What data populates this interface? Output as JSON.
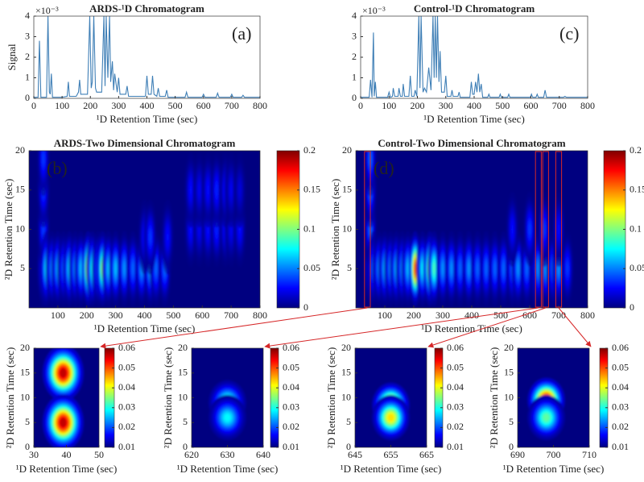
{
  "chart_data": [
    {
      "type": "line",
      "title": "ARDS-¹D Chromatogram",
      "annotation": "(a)",
      "x_label": "¹D Retention Time (sec)",
      "y_label": "Signal",
      "exponent_label": "×10⁻³",
      "xlim": [
        0,
        800
      ],
      "xticks": [
        0,
        100,
        200,
        300,
        400,
        500,
        600,
        700,
        800
      ],
      "ylim": [
        0,
        4
      ],
      "yticks": [
        0,
        1,
        2,
        3,
        4
      ],
      "color": "#3f7fb6",
      "x": [
        0,
        15,
        20,
        25,
        45,
        50,
        55,
        58,
        62,
        66,
        100,
        118,
        122,
        126,
        150,
        158,
        162,
        166,
        190,
        198,
        203,
        207,
        212,
        218,
        222,
        240,
        248,
        252,
        256,
        262,
        268,
        272,
        278,
        282,
        286,
        295,
        300,
        305,
        325,
        330,
        335,
        395,
        400,
        405,
        415,
        420,
        425,
        435,
        440,
        445,
        465,
        470,
        475,
        535,
        540,
        545,
        595,
        600,
        605,
        645,
        650,
        655,
        695,
        700,
        705,
        735,
        740,
        745,
        800
      ],
      "values": [
        0.05,
        0.05,
        2.8,
        0.05,
        0.05,
        4,
        0.3,
        0.2,
        1.2,
        0.05,
        0.05,
        0.1,
        0.8,
        0.1,
        0.1,
        0.3,
        0.9,
        0.2,
        0.2,
        4,
        0.5,
        0.8,
        4,
        0.5,
        0.3,
        0.3,
        4,
        0.6,
        4,
        1.0,
        4,
        0.8,
        1.8,
        0.4,
        1.2,
        0.3,
        1.0,
        0.2,
        0.2,
        0.6,
        0.1,
        0.1,
        1.1,
        0.2,
        0.2,
        1.1,
        0.2,
        0.1,
        0.5,
        0.1,
        0.1,
        0.4,
        0.05,
        0.05,
        0.3,
        0.05,
        0.05,
        0.2,
        0.05,
        0.05,
        0.25,
        0.05,
        0.05,
        0.2,
        0.05,
        0.05,
        0.15,
        0.05,
        0.05
      ]
    },
    {
      "type": "line",
      "title": "Control-¹D Chromatogram",
      "annotation": "(c)",
      "x_label": "¹D Retention Time (sec)",
      "exponent_label": "×10⁻³",
      "xlim": [
        0,
        800
      ],
      "xticks": [
        0,
        100,
        200,
        300,
        400,
        500,
        600,
        700,
        800
      ],
      "ylim": [
        0,
        4
      ],
      "yticks": [
        0,
        1,
        2,
        3,
        4
      ],
      "color": "#3f7fb6",
      "x": [
        0,
        30,
        35,
        40,
        45,
        48,
        52,
        56,
        95,
        100,
        105,
        112,
        115,
        120,
        132,
        135,
        140,
        147,
        150,
        155,
        170,
        175,
        180,
        188,
        192,
        198,
        205,
        209,
        213,
        220,
        225,
        232,
        240,
        248,
        255,
        259,
        263,
        267,
        271,
        276,
        280,
        285,
        295,
        300,
        305,
        318,
        322,
        326,
        343,
        347,
        351,
        385,
        390,
        395,
        400,
        405,
        410,
        415,
        420,
        425,
        430,
        448,
        452,
        456,
        488,
        492,
        496,
        518,
        522,
        526,
        598,
        602,
        606,
        618,
        622,
        626,
        645,
        650,
        655,
        715,
        720,
        725,
        800
      ],
      "values": [
        0.05,
        0.05,
        0.9,
        0.05,
        3.2,
        0.1,
        0.8,
        0.05,
        0.05,
        0.3,
        0.05,
        0.1,
        0.5,
        0.1,
        0.1,
        0.5,
        0.1,
        0.1,
        0.7,
        0.1,
        0.1,
        1.1,
        0.1,
        0.1,
        0.4,
        0.1,
        4,
        0.5,
        4,
        0.3,
        0.5,
        0.3,
        1.5,
        0.4,
        4,
        1,
        4,
        1,
        4,
        0.8,
        2.3,
        0.3,
        0.3,
        1.1,
        0.1,
        0.1,
        0.4,
        0.1,
        0.1,
        0.3,
        0.05,
        0.05,
        0.8,
        0.2,
        0.2,
        0.8,
        0.3,
        1.2,
        0.3,
        0.7,
        0.05,
        0.05,
        0.2,
        0.05,
        0.05,
        0.2,
        0.05,
        0.05,
        0.2,
        0.05,
        0.05,
        0.2,
        0.05,
        0.05,
        0.2,
        0.05,
        0.05,
        0.4,
        0.05,
        0.05,
        0.1,
        0.05,
        0.05
      ]
    },
    {
      "type": "heatmap",
      "title": "ARDS-Two Dimensional Chromatogram",
      "annotation": "(b)",
      "x_label": "¹D Retention Time (sec)",
      "y_label": "²D Retention Time (sec)",
      "colormap": "jet",
      "xlim": [
        0,
        800
      ],
      "xticks": [
        100,
        200,
        300,
        400,
        500,
        600,
        700,
        800
      ],
      "ylim": [
        0,
        20
      ],
      "yticks": [
        5,
        10,
        15,
        20
      ],
      "zlim": [
        0,
        0.2
      ],
      "zticks": [
        0,
        0.05,
        0.1,
        0.15,
        0.2
      ],
      "spots": {
        "x": [
          50,
          50,
          50,
          50,
          60,
          80,
          100,
          120,
          140,
          160,
          180,
          205,
          220,
          240,
          255,
          275,
          300,
          330,
          360,
          390,
          420,
          440,
          470,
          400,
          420,
          480,
          560,
          590,
          620,
          650,
          680,
          700,
          730,
          560,
          590,
          620,
          650,
          680,
          700,
          730
        ],
        "y": [
          5,
          10,
          15,
          19,
          5,
          5,
          5,
          5,
          5,
          5,
          5,
          5,
          5,
          5,
          5,
          5,
          5,
          5,
          5,
          5,
          5,
          5,
          5,
          9,
          9,
          9,
          10,
          10,
          10,
          10,
          10,
          10,
          10,
          15,
          15,
          15,
          15,
          15,
          15,
          15
        ],
        "z": [
          0.05,
          0.04,
          0.04,
          0.04,
          0.08,
          0.06,
          0.07,
          0.05,
          0.08,
          0.06,
          0.07,
          0.16,
          0.09,
          0.06,
          0.12,
          0.07,
          0.07,
          0.06,
          0.05,
          0.06,
          0.07,
          0.05,
          0.05,
          0.03,
          0.04,
          0.03,
          0.03,
          0.025,
          0.03,
          0.035,
          0.03,
          0.025,
          0.03,
          0.03,
          0.025,
          0.03,
          0.035,
          0.03,
          0.025,
          0.02
        ]
      }
    },
    {
      "type": "heatmap",
      "title": "Control-Two Dimensional Chromatogram",
      "annotation": "(d)",
      "x_label": "¹D Retention Time (sec)",
      "y_label": "²D Retention Time (sec)",
      "colormap": "jet",
      "xlim": [
        0,
        800
      ],
      "xticks": [
        100,
        200,
        300,
        400,
        500,
        600,
        700,
        800
      ],
      "ylim": [
        0,
        20
      ],
      "yticks": [
        5,
        10,
        15,
        20
      ],
      "zlim": [
        0,
        0.2
      ],
      "zticks": [
        0,
        0.05,
        0.1,
        0.15,
        0.2
      ],
      "spots": {
        "x": [
          50,
          50,
          50,
          50,
          60,
          80,
          100,
          120,
          140,
          160,
          180,
          205,
          230,
          255,
          270,
          300,
          330,
          360,
          390,
          420,
          450,
          480,
          510,
          540,
          560,
          590,
          620,
          630,
          655,
          680,
          700,
          730,
          540,
          600,
          650,
          700
        ],
        "y": [
          5,
          10,
          15,
          19,
          5,
          5,
          5,
          5,
          5,
          5,
          5,
          5,
          5,
          5,
          5,
          5,
          5,
          5,
          5,
          5,
          5,
          5,
          5,
          5,
          5,
          5,
          5,
          5,
          5,
          5,
          5,
          5,
          10,
          10,
          10,
          10
        ],
        "z": [
          0.05,
          0.05,
          0.05,
          0.05,
          0.05,
          0.06,
          0.07,
          0.06,
          0.07,
          0.06,
          0.07,
          0.18,
          0.08,
          0.14,
          0.1,
          0.06,
          0.06,
          0.05,
          0.06,
          0.05,
          0.05,
          0.05,
          0.05,
          0.05,
          0.06,
          0.05,
          0.05,
          0.06,
          0.06,
          0.05,
          0.06,
          0.04,
          0.03,
          0.04,
          0.04,
          0.03
        ]
      }
    },
    {
      "type": "heatmap",
      "x_label": "¹D Retention Time (sec)",
      "y_label": "²D Retention Time (sec)",
      "colormap": "jet",
      "xlim": [
        30,
        50
      ],
      "xticks": [
        30,
        40,
        50
      ],
      "ylim": [
        0,
        20
      ],
      "yticks": [
        0,
        5,
        10,
        15,
        20
      ],
      "zlim": [
        0.01,
        0.06
      ],
      "zticks": [
        0.01,
        0.02,
        0.03,
        0.04,
        0.05,
        0.06
      ],
      "spots": {
        "x": [
          39,
          39
        ],
        "y": [
          15,
          5
        ],
        "z": [
          0.06,
          0.06
        ]
      }
    },
    {
      "type": "heatmap",
      "x_label": "¹D Retention Time (sec)",
      "y_label": "²D Retention Time (sec)",
      "colormap": "jet",
      "xlim": [
        620,
        640
      ],
      "xticks": [
        620,
        630,
        640
      ],
      "ylim": [
        0,
        20
      ],
      "yticks": [
        0,
        5,
        10,
        15,
        20
      ],
      "zlim": [
        0.01,
        0.06
      ],
      "zticks": [
        0.01,
        0.02,
        0.03,
        0.04,
        0.05,
        0.06
      ],
      "spots": {
        "x": [
          630,
          630
        ],
        "y": [
          9,
          6
        ],
        "z": [
          0.035,
          0.03
        ]
      }
    },
    {
      "type": "heatmap",
      "x_label": "¹D Retention Time (sec)",
      "y_label": "²D Retention Time (sec)",
      "colormap": "jet",
      "xlim": [
        645,
        665
      ],
      "xticks": [
        645,
        655,
        665
      ],
      "ylim": [
        0,
        20
      ],
      "yticks": [
        0,
        5,
        10,
        15,
        20
      ],
      "zlim": [
        0.01,
        0.06
      ],
      "zticks": [
        0.01,
        0.02,
        0.03,
        0.04,
        0.05,
        0.06
      ],
      "spots": {
        "x": [
          655,
          655
        ],
        "y": [
          8.5,
          6
        ],
        "z": [
          0.055,
          0.045
        ]
      }
    },
    {
      "type": "heatmap",
      "x_label": "¹D Retention Time (sec)",
      "y_label": "²D Retention Time (sec)",
      "colormap": "jet",
      "xlim": [
        690,
        710
      ],
      "xticks": [
        690,
        700,
        710
      ],
      "ylim": [
        0,
        20
      ],
      "yticks": [
        0,
        5,
        10,
        15,
        20
      ],
      "zlim": [
        0.01,
        0.06
      ],
      "zticks": [
        0.01,
        0.02,
        0.03,
        0.04,
        0.05,
        0.06
      ],
      "spots": {
        "x": [
          698,
          698
        ],
        "y": [
          9.5,
          6
        ],
        "z": [
          0.06,
          0.035
        ]
      }
    }
  ]
}
